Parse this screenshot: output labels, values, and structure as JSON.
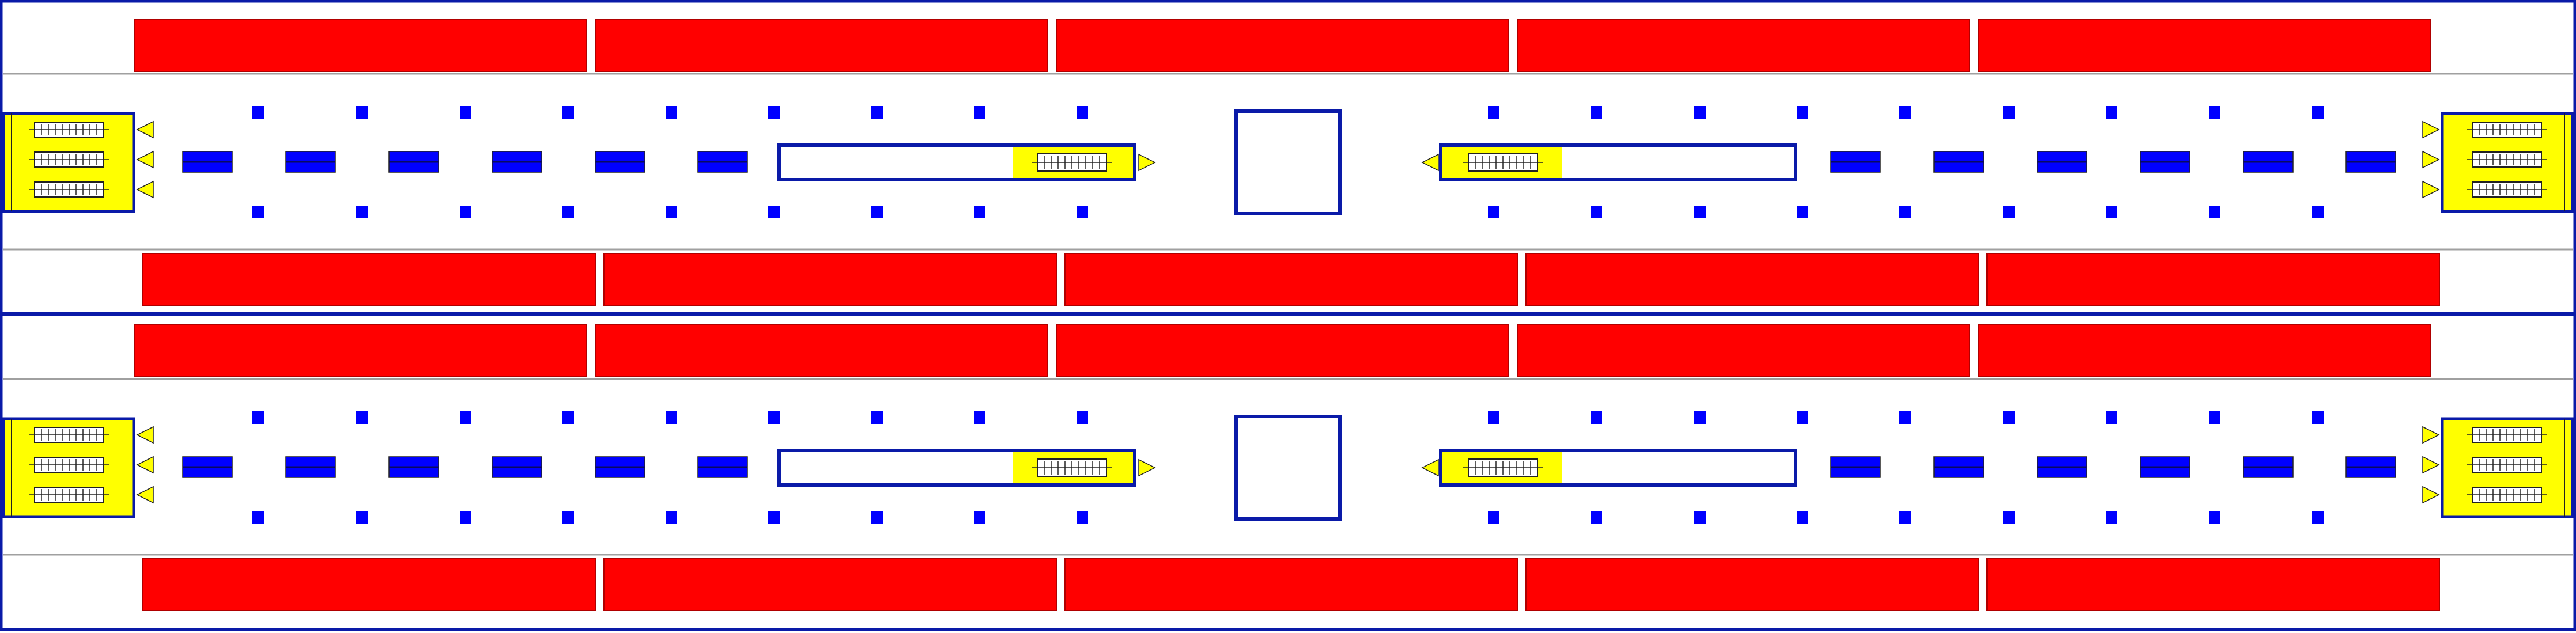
{
  "colors": {
    "border": "#0a1aa8",
    "train": "#ff0000",
    "escalator": "#ffff00",
    "column": "#0000ff",
    "edge_line": "#a0a0a0",
    "background": "#ffffff",
    "dark": "#222222"
  },
  "levels": [
    {
      "id": "upper-level",
      "platform_edges": "solid",
      "trains_top_count": 5,
      "trains_bottom_count": 5
    },
    {
      "id": "lower-level",
      "platform_edges": "solid",
      "trains_top_count": 5,
      "trains_bottom_count": 5
    }
  ],
  "element_types": [
    "train-car",
    "column",
    "bench",
    "escalator-bank",
    "stairwell",
    "elevator-box",
    "direction-arrow"
  ]
}
